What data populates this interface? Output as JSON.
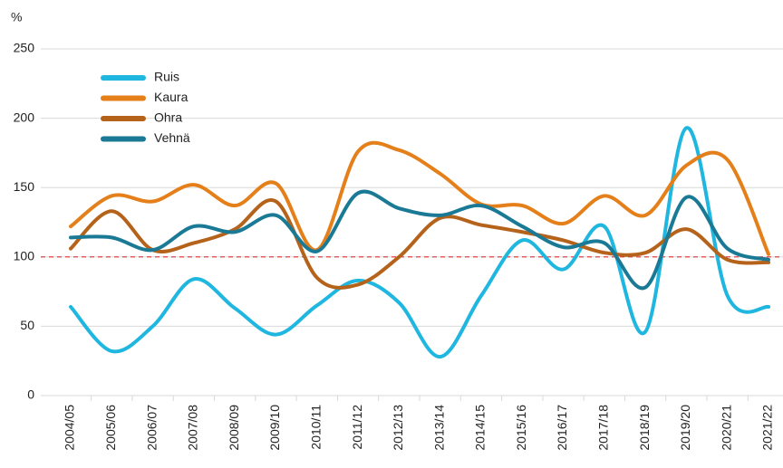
{
  "chart_data": {
    "type": "line",
    "y_label": "%",
    "categories": [
      "2004/05",
      "2005/06",
      "2006/07",
      "2007/08",
      "2008/09",
      "2009/10",
      "2010/11",
      "2011/12",
      "2012/13",
      "2013/14",
      "2014/15",
      "2015/16",
      "2016/17",
      "2017/18",
      "2018/19",
      "2019/20",
      "2020/21",
      "2021/22"
    ],
    "series": [
      {
        "name": "Ruis",
        "color": "#1fb6e0",
        "values": [
          64,
          32,
          50,
          84,
          63,
          44,
          65,
          83,
          67,
          28,
          72,
          112,
          91,
          122,
          46,
          193,
          72,
          64
        ]
      },
      {
        "name": "Kaura",
        "color": "#e47f1a",
        "values": [
          122,
          144,
          140,
          152,
          137,
          153,
          105,
          176,
          177,
          160,
          138,
          137,
          124,
          144,
          130,
          166,
          170,
          102
        ]
      },
      {
        "name": "Ohra",
        "color": "#b5621a",
        "values": [
          106,
          133,
          105,
          110,
          120,
          140,
          85,
          80,
          100,
          128,
          123,
          118,
          112,
          103,
          103,
          120,
          98,
          96
        ]
      },
      {
        "name": "Vehnä",
        "color": "#1a7a96",
        "values": [
          114,
          114,
          105,
          122,
          118,
          130,
          104,
          146,
          135,
          130,
          137,
          122,
          107,
          110,
          78,
          143,
          106,
          98
        ]
      }
    ],
    "ylim": [
      0,
      250
    ],
    "yticks": [
      0,
      50,
      100,
      150,
      200,
      250
    ],
    "grid": true,
    "reference_line": {
      "value": 100,
      "color": "#e03030"
    }
  }
}
